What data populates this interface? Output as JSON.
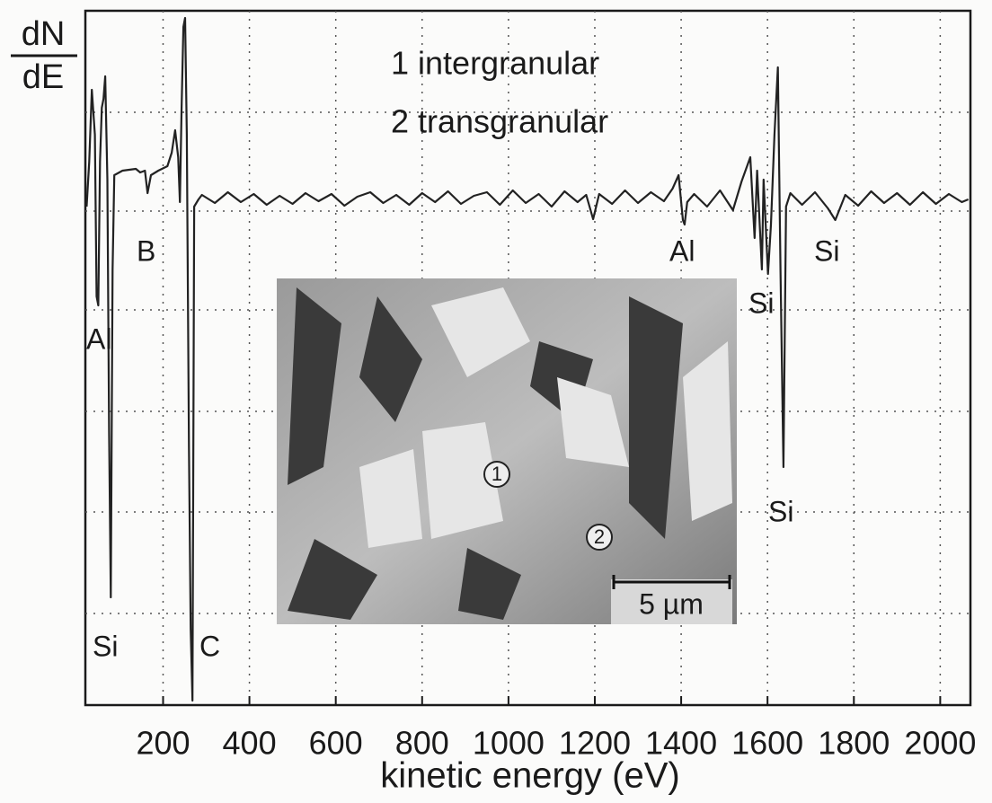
{
  "chart_data": {
    "type": "line",
    "ylabel": {
      "numerator": "dN",
      "denominator": "dE"
    },
    "xlabel": "kinetic energy (eV)",
    "legend_lines": [
      "1 intergranular",
      "2 transgranular"
    ],
    "annotations": [
      "B",
      "Al",
      "Si",
      "C",
      "Al",
      "Si",
      "Si",
      "Si"
    ],
    "inset": {
      "markers": [
        "1",
        "2"
      ],
      "scale_bar": "5 µm"
    },
    "color": "#222222",
    "grid": true,
    "xlim": [
      20,
      2070
    ],
    "ylim": [
      -563,
      210
    ],
    "xticks": [
      200,
      400,
      600,
      800,
      1000,
      1200,
      1400,
      1600,
      1800,
      2000
    ],
    "x": [
      23,
      29,
      35,
      42,
      46,
      50,
      54,
      58,
      62,
      66,
      71,
      75,
      79,
      83,
      87,
      106,
      137,
      147,
      158,
      164,
      172,
      189,
      210,
      220,
      228,
      235,
      239,
      243,
      247,
      251,
      255,
      260,
      264,
      268,
      272,
      282,
      290,
      320,
      350,
      380,
      410,
      440,
      470,
      500,
      530,
      560,
      590,
      620,
      650,
      680,
      710,
      740,
      770,
      800,
      830,
      860,
      890,
      920,
      950,
      980,
      1010,
      1040,
      1070,
      1100,
      1130,
      1160,
      1180,
      1196,
      1210,
      1240,
      1270,
      1300,
      1330,
      1360,
      1380,
      1394,
      1404,
      1408,
      1414,
      1430,
      1460,
      1490,
      1520,
      1540,
      1560,
      1570,
      1576,
      1587,
      1591,
      1601,
      1608,
      1616,
      1624,
      1630,
      1637,
      1643,
      1653,
      1680,
      1710,
      1740,
      1757,
      1780,
      1810,
      1840,
      1870,
      1900,
      1930,
      1960,
      1990,
      2020,
      2050,
      2065
    ],
    "values": [
      -8,
      42,
      122,
      72,
      -108,
      -118,
      42,
      102,
      112,
      137,
      22,
      -258,
      -443,
      -78,
      27,
      32,
      34,
      30,
      32,
      7,
      27,
      32,
      37,
      52,
      77,
      47,
      -3,
      102,
      192,
      202,
      72,
      -278,
      -478,
      -558,
      -8,
      0,
      5,
      -4,
      8,
      -3,
      6,
      -6,
      4,
      -5,
      7,
      -2,
      6,
      -7,
      3,
      8,
      -4,
      5,
      -6,
      7,
      -3,
      9,
      -5,
      4,
      8,
      -6,
      10,
      -4,
      6,
      -8,
      9,
      -3,
      5,
      -22,
      6,
      -5,
      10,
      -4,
      8,
      -2,
      12,
      27,
      -23,
      -28,
      -3,
      6,
      -8,
      10,
      -12,
      20,
      47,
      -43,
      32,
      -78,
      22,
      -83,
      -28,
      72,
      147,
      -78,
      -298,
      -8,
      7,
      -6,
      8,
      -10,
      -23,
      5,
      -7,
      9,
      -4,
      7,
      -6,
      8,
      -5,
      6,
      -3,
      0
    ]
  }
}
